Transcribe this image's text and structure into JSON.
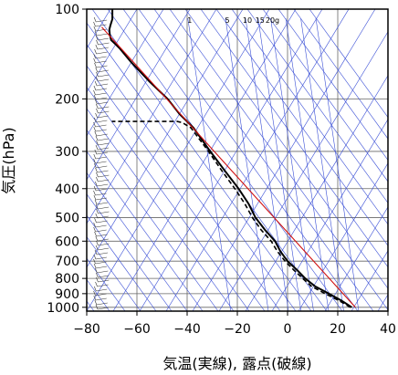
{
  "chart_data": {
    "type": "line",
    "title": "",
    "xlabel": "気温(実線), 露点(破線)",
    "ylabel": "気圧(hPa)",
    "xlim": [
      -80,
      40
    ],
    "ylim": [
      1030,
      100
    ],
    "yscale": "log",
    "grid": true,
    "x_ticks": [
      "−80",
      "−60",
      "−40",
      "−20",
      "0",
      "20",
      "40"
    ],
    "y_ticks": [
      {
        "p": 100,
        "label": "100"
      },
      {
        "p": 200,
        "label": "200"
      },
      {
        "p": 300,
        "label": "300"
      },
      {
        "p": 400,
        "label": "400"
      },
      {
        "p": 500,
        "label": "500"
      },
      {
        "p": 600,
        "label": "600"
      },
      {
        "p": 700,
        "label": "700"
      },
      {
        "p": 800,
        "label": "800"
      },
      {
        "p": 900,
        "label": "900"
      },
      {
        "p": 1000,
        "label": "1000"
      }
    ],
    "mixing_ratio_labels": [
      {
        "value": "1",
        "t": -39
      },
      {
        "value": "5",
        "t": -24
      },
      {
        "value": "10",
        "t": -16
      },
      {
        "value": "15",
        "t": -11
      },
      {
        "value": "20g",
        "t": -6
      }
    ],
    "series": [
      {
        "style": "temperature",
        "color": "#000000",
        "points": [
          [
            25.6,
            1000
          ],
          [
            21.5,
            950
          ],
          [
            16.5,
            900
          ],
          [
            10.9,
            850
          ],
          [
            7.0,
            800
          ],
          [
            3.8,
            750
          ],
          [
            0.0,
            700
          ],
          [
            -2.8,
            650
          ],
          [
            -5.0,
            600
          ],
          [
            -9.0,
            550
          ],
          [
            -12.8,
            500
          ],
          [
            -15.5,
            450
          ],
          [
            -19.5,
            400
          ],
          [
            -24.8,
            350
          ],
          [
            -30.8,
            300
          ],
          [
            -37.5,
            250
          ],
          [
            -43.0,
            225
          ],
          [
            -47.8,
            200
          ],
          [
            -55.0,
            175
          ],
          [
            -62.5,
            150
          ],
          [
            -67.0,
            135
          ],
          [
            -70.3,
            127
          ],
          [
            -70.8,
            122
          ],
          [
            -71.0,
            117
          ],
          [
            -70.5,
            113
          ],
          [
            -69.8,
            108
          ],
          [
            -69.8,
            100
          ]
        ]
      },
      {
        "style": "dewpoint",
        "color": "#000000",
        "points": [
          [
            25.0,
            1000
          ],
          [
            20.5,
            950
          ],
          [
            15.0,
            900
          ],
          [
            9.5,
            850
          ],
          [
            6.0,
            800
          ],
          [
            2.5,
            750
          ],
          [
            -1.0,
            700
          ],
          [
            -4.0,
            650
          ],
          [
            -6.5,
            600
          ],
          [
            -10.5,
            550
          ],
          [
            -14.0,
            500
          ],
          [
            -17.0,
            450
          ],
          [
            -21.0,
            400
          ],
          [
            -26.0,
            350
          ],
          [
            -31.5,
            300
          ],
          [
            -38.5,
            250
          ],
          [
            -42.0,
            240
          ],
          [
            -44.0,
            238
          ],
          [
            -65.0,
            238
          ],
          [
            -70.0,
            238
          ]
        ]
      },
      {
        "style": "reference",
        "color": "#d01010",
        "points": [
          [
            27.0,
            1000
          ],
          [
            -74.0,
            115
          ]
        ]
      }
    ]
  }
}
